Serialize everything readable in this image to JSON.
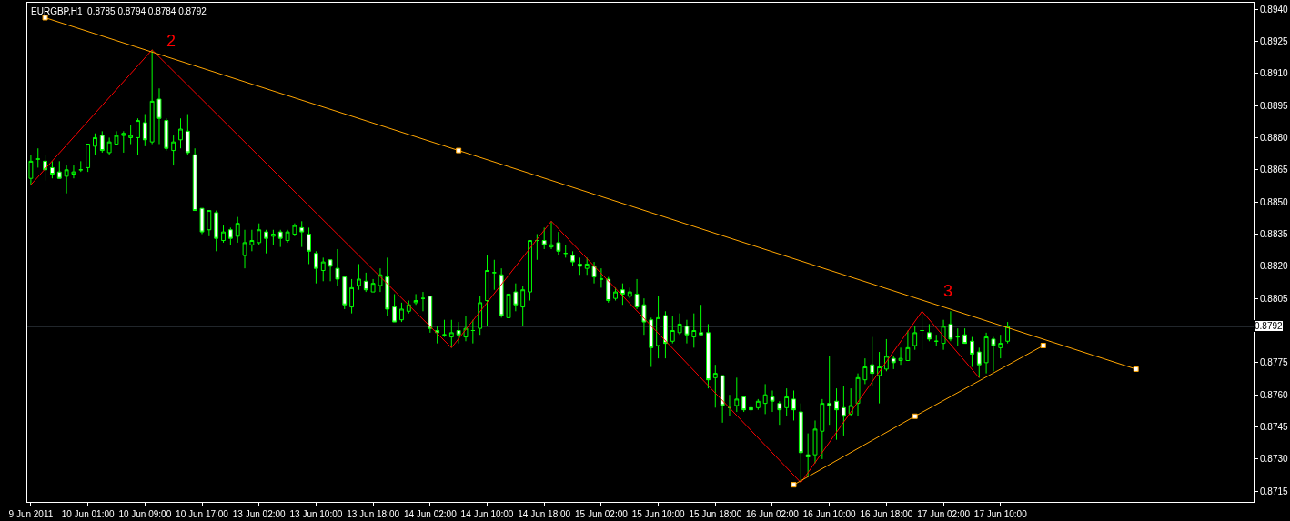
{
  "chart_data": {
    "type": "candlestick",
    "title": "EURGBP,H1  0.8785 0.8794 0.8784 0.8792",
    "categories": [
      "9 Jun 2011",
      null,
      null,
      null,
      null,
      null,
      null,
      null,
      "10 Jun 01:00",
      null,
      null,
      null,
      null,
      null,
      null,
      null,
      "10 Jun 09:00",
      null,
      null,
      null,
      null,
      null,
      null,
      null,
      "10 Jun 17:00",
      null,
      null,
      null,
      null,
      null,
      null,
      null,
      "13 Jun 02:00",
      null,
      null,
      null,
      null,
      null,
      null,
      null,
      "13 Jun 10:00",
      null,
      null,
      null,
      null,
      null,
      null,
      null,
      "13 Jun 18:00",
      null,
      null,
      null,
      null,
      null,
      null,
      null,
      "14 Jun 02:00",
      null,
      null,
      null,
      null,
      null,
      null,
      null,
      "14 Jun 10:00",
      null,
      null,
      null,
      null,
      null,
      null,
      null,
      "14 Jun 18:00",
      null,
      null,
      null,
      null,
      null,
      null,
      null,
      "15 Jun 02:00",
      null,
      null,
      null,
      null,
      null,
      null,
      null,
      "15 Jun 10:00",
      null,
      null,
      null,
      null,
      null,
      null,
      null,
      "15 Jun 18:00",
      null,
      null,
      null,
      null,
      null,
      null,
      null,
      "16 Jun 02:00",
      null,
      null,
      null,
      null,
      null,
      null,
      null,
      "16 Jun 10:00",
      null,
      null,
      null,
      null,
      null,
      null,
      null,
      "16 Jun 18:00",
      null,
      null,
      null,
      null,
      null,
      null,
      null,
      "17 Jun 02:00",
      null,
      null,
      null,
      null,
      null,
      null,
      null,
      "17 Jun 10:00",
      null,
      null,
      null,
      null,
      null,
      null,
      null,
      null,
      null,
      null,
      null,
      null,
      null,
      null,
      null,
      null,
      null,
      null,
      null,
      null,
      null,
      null,
      null,
      null,
      null,
      null,
      null,
      null,
      null,
      null,
      null,
      null,
      null,
      null,
      null
    ],
    "color": "#00ff00",
    "ohlc": [
      [
        0.8861,
        0.8872,
        0.8858,
        0.8869
      ],
      [
        0.887,
        0.8875,
        0.8866,
        0.887
      ],
      [
        0.8869,
        0.8872,
        0.886,
        0.8865
      ],
      [
        0.8866,
        0.8869,
        0.8861,
        0.8863
      ],
      [
        0.8864,
        0.8869,
        0.8861,
        0.8861
      ],
      [
        0.8862,
        0.8867,
        0.8854,
        0.8865
      ],
      [
        0.8863,
        0.8867,
        0.8861,
        0.8864
      ],
      [
        0.8865,
        0.8869,
        0.8864,
        0.8865
      ],
      [
        0.8866,
        0.8877,
        0.8864,
        0.8877
      ],
      [
        0.8876,
        0.8882,
        0.8872,
        0.888
      ],
      [
        0.8881,
        0.8883,
        0.8873,
        0.8874
      ],
      [
        0.8873,
        0.888,
        0.8872,
        0.8878
      ],
      [
        0.8877,
        0.8883,
        0.8877,
        0.8881
      ],
      [
        0.8881,
        0.8883,
        0.8873,
        0.8882
      ],
      [
        0.888,
        0.8886,
        0.8877,
        0.8881
      ],
      [
        0.888,
        0.8889,
        0.8872,
        0.8888
      ],
      [
        0.8887,
        0.8891,
        0.8876,
        0.8879
      ],
      [
        0.8878,
        0.8921,
        0.8877,
        0.8897
      ],
      [
        0.8898,
        0.8903,
        0.8877,
        0.8889
      ],
      [
        0.8888,
        0.8889,
        0.8874,
        0.8875
      ],
      [
        0.8874,
        0.8881,
        0.8867,
        0.8878
      ],
      [
        0.8879,
        0.8889,
        0.8875,
        0.8884
      ],
      [
        0.8883,
        0.8891,
        0.8872,
        0.8873
      ],
      [
        0.8872,
        0.8875,
        0.8846,
        0.8846
      ],
      [
        0.8847,
        0.8847,
        0.8835,
        0.8836
      ],
      [
        0.8837,
        0.8846,
        0.8834,
        0.8846
      ],
      [
        0.8845,
        0.8846,
        0.8827,
        0.8833
      ],
      [
        0.8832,
        0.8839,
        0.8831,
        0.8836
      ],
      [
        0.8837,
        0.8838,
        0.883,
        0.8833
      ],
      [
        0.8834,
        0.8843,
        0.8831,
        0.884
      ],
      [
        0.8825,
        0.8837,
        0.8819,
        0.8831
      ],
      [
        0.883,
        0.8837,
        0.8827,
        0.8832
      ],
      [
        0.8831,
        0.884,
        0.883,
        0.8837
      ],
      [
        0.8836,
        0.8837,
        0.8826,
        0.8833
      ],
      [
        0.8834,
        0.8837,
        0.883,
        0.8835
      ],
      [
        0.8836,
        0.8837,
        0.8829,
        0.8833
      ],
      [
        0.8832,
        0.8837,
        0.8831,
        0.8836
      ],
      [
        0.8835,
        0.884,
        0.8834,
        0.8839
      ],
      [
        0.8838,
        0.8841,
        0.8829,
        0.8836
      ],
      [
        0.8835,
        0.8838,
        0.8821,
        0.8827
      ],
      [
        0.8826,
        0.8827,
        0.8812,
        0.8819
      ],
      [
        0.8818,
        0.8824,
        0.8813,
        0.8822
      ],
      [
        0.8823,
        0.8823,
        0.8813,
        0.882
      ],
      [
        0.8819,
        0.8828,
        0.8811,
        0.8814
      ],
      [
        0.8815,
        0.8815,
        0.88,
        0.8802
      ],
      [
        0.8801,
        0.8814,
        0.8798,
        0.881
      ],
      [
        0.8811,
        0.8821,
        0.8809,
        0.8814
      ],
      [
        0.8813,
        0.8817,
        0.8808,
        0.8809
      ],
      [
        0.8808,
        0.8814,
        0.8808,
        0.8812
      ],
      [
        0.8811,
        0.8819,
        0.8808,
        0.8816
      ],
      [
        0.8815,
        0.8824,
        0.8797,
        0.88
      ],
      [
        0.8801,
        0.8807,
        0.8794,
        0.8794
      ],
      [
        0.8795,
        0.8803,
        0.8794,
        0.88
      ],
      [
        0.8799,
        0.8804,
        0.8798,
        0.8802
      ],
      [
        0.8803,
        0.8807,
        0.8802,
        0.8804
      ],
      [
        0.8805,
        0.8808,
        0.8799,
        0.8805
      ],
      [
        0.8806,
        0.8806,
        0.8789,
        0.8791
      ],
      [
        0.879,
        0.8792,
        0.8784,
        0.8789
      ],
      [
        0.8788,
        0.8795,
        0.8787,
        0.8788
      ],
      [
        0.8787,
        0.8795,
        0.8782,
        0.8789
      ],
      [
        0.879,
        0.8794,
        0.8784,
        0.8788
      ],
      [
        0.8787,
        0.8797,
        0.8785,
        0.8791
      ],
      [
        0.879,
        0.8795,
        0.8784,
        0.879
      ],
      [
        0.8791,
        0.8806,
        0.8788,
        0.8803
      ],
      [
        0.8804,
        0.8825,
        0.8792,
        0.8818
      ],
      [
        0.8817,
        0.8823,
        0.8809,
        0.8817
      ],
      [
        0.8816,
        0.8819,
        0.8796,
        0.8797
      ],
      [
        0.8796,
        0.8807,
        0.8796,
        0.8807
      ],
      [
        0.8808,
        0.8812,
        0.8799,
        0.8802
      ],
      [
        0.8801,
        0.8811,
        0.8792,
        0.8809
      ],
      [
        0.8808,
        0.8832,
        0.8804,
        0.8832
      ],
      [
        0.8832,
        0.8835,
        0.8823,
        0.8832
      ],
      [
        0.8832,
        0.8838,
        0.8828,
        0.883
      ],
      [
        0.8829,
        0.8841,
        0.8828,
        0.883
      ],
      [
        0.8831,
        0.8836,
        0.8825,
        0.8827
      ],
      [
        0.8826,
        0.883,
        0.8824,
        0.8826
      ],
      [
        0.8825,
        0.8827,
        0.882,
        0.8822
      ],
      [
        0.8821,
        0.8824,
        0.8816,
        0.882
      ],
      [
        0.8819,
        0.8824,
        0.8816,
        0.8821
      ],
      [
        0.882,
        0.8822,
        0.8812,
        0.8815
      ],
      [
        0.8814,
        0.8819,
        0.881,
        0.8814
      ],
      [
        0.8814,
        0.8815,
        0.8803,
        0.8804
      ],
      [
        0.8805,
        0.881,
        0.8804,
        0.8808
      ],
      [
        0.8809,
        0.8812,
        0.8802,
        0.8807
      ],
      [
        0.8806,
        0.881,
        0.8805,
        0.8808
      ],
      [
        0.8807,
        0.8814,
        0.88,
        0.8801
      ],
      [
        0.8802,
        0.8805,
        0.8788,
        0.8794
      ],
      [
        0.8795,
        0.8796,
        0.8773,
        0.8782
      ],
      [
        0.8783,
        0.8806,
        0.8777,
        0.8796
      ],
      [
        0.8797,
        0.8799,
        0.8777,
        0.8784
      ],
      [
        0.8785,
        0.8797,
        0.8784,
        0.879
      ],
      [
        0.8789,
        0.8798,
        0.8788,
        0.8793
      ],
      [
        0.8792,
        0.8795,
        0.8784,
        0.8788
      ],
      [
        0.8787,
        0.8798,
        0.8782,
        0.879
      ],
      [
        0.8789,
        0.8802,
        0.8788,
        0.8788
      ],
      [
        0.8789,
        0.8793,
        0.8763,
        0.8767
      ],
      [
        0.8768,
        0.8774,
        0.8754,
        0.877
      ],
      [
        0.8769,
        0.8769,
        0.8747,
        0.8755
      ],
      [
        0.8754,
        0.876,
        0.875,
        0.8754
      ],
      [
        0.8755,
        0.8768,
        0.8752,
        0.8758
      ],
      [
        0.8759,
        0.8759,
        0.8752,
        0.8753
      ],
      [
        0.8754,
        0.8756,
        0.8751,
        0.8753
      ],
      [
        0.8754,
        0.8758,
        0.8753,
        0.8757
      ],
      [
        0.8756,
        0.8765,
        0.8751,
        0.876
      ],
      [
        0.8759,
        0.8762,
        0.8752,
        0.8757
      ],
      [
        0.8756,
        0.8757,
        0.8746,
        0.8753
      ],
      [
        0.8754,
        0.8763,
        0.875,
        0.8759
      ],
      [
        0.8758,
        0.8762,
        0.8748,
        0.8753
      ],
      [
        0.8752,
        0.8756,
        0.8719,
        0.8733
      ],
      [
        0.8732,
        0.8742,
        0.8722,
        0.8731
      ],
      [
        0.8732,
        0.8748,
        0.8728,
        0.8744
      ],
      [
        0.8743,
        0.8758,
        0.873,
        0.8756
      ],
      [
        0.8756,
        0.8778,
        0.8746,
        0.8755
      ],
      [
        0.8757,
        0.8763,
        0.8739,
        0.8753
      ],
      [
        0.8754,
        0.8764,
        0.8741,
        0.875
      ],
      [
        0.8751,
        0.8763,
        0.875,
        0.8755
      ],
      [
        0.8756,
        0.877,
        0.875,
        0.8768
      ],
      [
        0.8767,
        0.8777,
        0.8765,
        0.8773
      ],
      [
        0.8774,
        0.8787,
        0.8764,
        0.877
      ],
      [
        0.8769,
        0.878,
        0.8756,
        0.8773
      ],
      [
        0.8772,
        0.8786,
        0.8771,
        0.8778
      ],
      [
        0.8777,
        0.8778,
        0.8772,
        0.8775
      ],
      [
        0.8776,
        0.8782,
        0.8774,
        0.8777
      ],
      [
        0.8776,
        0.879,
        0.8776,
        0.8782
      ],
      [
        0.8783,
        0.8792,
        0.8781,
        0.8789
      ],
      [
        0.879,
        0.8799,
        0.8781,
        0.879
      ],
      [
        0.8789,
        0.8793,
        0.8785,
        0.8786
      ],
      [
        0.8785,
        0.8788,
        0.8783,
        0.8785
      ],
      [
        0.8784,
        0.8795,
        0.8781,
        0.8792
      ],
      [
        0.8793,
        0.8799,
        0.8785,
        0.8786
      ],
      [
        0.8787,
        0.8791,
        0.8783,
        0.8787
      ],
      [
        0.8788,
        0.8791,
        0.8784,
        0.8784
      ],
      [
        0.8785,
        0.8787,
        0.8773,
        0.8779
      ],
      [
        0.878,
        0.8782,
        0.8768,
        0.8774
      ],
      [
        0.8775,
        0.8789,
        0.877,
        0.8787
      ],
      [
        0.8786,
        0.8787,
        0.8771,
        0.8783
      ],
      [
        0.8782,
        0.8788,
        0.8777,
        0.8784
      ],
      [
        0.8785,
        0.8794,
        0.8784,
        0.8792
      ],
      null,
      null,
      null,
      null,
      null,
      null,
      null,
      null,
      null,
      null,
      null,
      null,
      null,
      null,
      null,
      null,
      null,
      null,
      null,
      null,
      null,
      null,
      null,
      null,
      null,
      null,
      null,
      null,
      null,
      null,
      null,
      null,
      null,
      null
    ],
    "series": [
      {
        "type": "line",
        "color": "#ff0000",
        "marker": "none",
        "values": [
          0.8858,
          null,
          null,
          null,
          null,
          null,
          null,
          null,
          null,
          null,
          null,
          null,
          null,
          null,
          null,
          null,
          null,
          0.8921,
          null,
          null,
          null,
          null,
          null,
          null,
          null,
          null,
          null,
          null,
          null,
          null,
          null,
          null,
          null,
          null,
          null,
          null,
          null,
          null,
          null,
          null,
          null,
          null,
          null,
          null,
          null,
          null,
          null,
          null,
          null,
          null,
          null,
          null,
          null,
          null,
          null,
          null,
          null,
          null,
          null,
          0.8782,
          null,
          null,
          null,
          null,
          null,
          null,
          null,
          null,
          null,
          null,
          null,
          null,
          null,
          0.8841,
          null,
          null,
          null,
          null,
          null,
          null,
          null,
          null,
          null,
          null,
          null,
          null,
          null,
          null,
          null,
          null,
          null,
          null,
          null,
          null,
          null,
          null,
          null,
          null,
          null,
          null,
          null,
          null,
          null,
          null,
          null,
          null,
          null,
          null,
          0.8719,
          null,
          null,
          null,
          null,
          null,
          null,
          null,
          null,
          null,
          null,
          null,
          null,
          null,
          null,
          null,
          null,
          0.8799,
          null,
          null,
          null,
          null,
          null,
          null,
          null,
          0.8768,
          null,
          null,
          null,
          null,
          null,
          null,
          null,
          null,
          null,
          null,
          null,
          null,
          null,
          null,
          null,
          null,
          null,
          null,
          null,
          null,
          null,
          null,
          null,
          null,
          null,
          null,
          null,
          null,
          null,
          null,
          null,
          null,
          null,
          null,
          null,
          null,
          null,
          null
        ]
      },
      {
        "type": "line",
        "color": "#ffa500",
        "marker": "square",
        "values": [
          null,
          null,
          0.8936,
          null,
          null,
          null,
          null,
          null,
          null,
          null,
          null,
          null,
          null,
          null,
          null,
          null,
          null,
          null,
          null,
          null,
          null,
          null,
          null,
          null,
          null,
          null,
          null,
          null,
          null,
          null,
          null,
          null,
          null,
          null,
          null,
          null,
          null,
          null,
          null,
          null,
          null,
          null,
          null,
          null,
          null,
          null,
          null,
          null,
          null,
          null,
          null,
          null,
          null,
          null,
          null,
          null,
          null,
          null,
          null,
          null,
          0.8874,
          null,
          null,
          null,
          null,
          null,
          null,
          null,
          null,
          null,
          null,
          null,
          null,
          null,
          null,
          null,
          null,
          null,
          null,
          null,
          null,
          null,
          null,
          null,
          null,
          null,
          null,
          null,
          null,
          null,
          null,
          null,
          null,
          null,
          null,
          null,
          null,
          null,
          null,
          null,
          null,
          null,
          null,
          null,
          null,
          null,
          null,
          null,
          null,
          null,
          null,
          null,
          null,
          null,
          null,
          null,
          null,
          null,
          null,
          null,
          null,
          null,
          null,
          null,
          null,
          null,
          null,
          null,
          null,
          null,
          null,
          null,
          null,
          null,
          null,
          null,
          null,
          null,
          null,
          null,
          null,
          null,
          null,
          null,
          null,
          null,
          null,
          null,
          null,
          null,
          null,
          null,
          null,
          null,
          null,
          0.8772,
          null,
          null,
          null,
          null,
          null,
          null,
          null,
          null,
          null,
          null,
          null,
          null,
          null,
          null,
          null,
          null
        ]
      },
      {
        "type": "line",
        "color": "#ffa500",
        "marker": "square",
        "values": [
          null,
          null,
          null,
          null,
          null,
          null,
          null,
          null,
          null,
          null,
          null,
          null,
          null,
          null,
          null,
          null,
          null,
          null,
          null,
          null,
          null,
          null,
          null,
          null,
          null,
          null,
          null,
          null,
          null,
          null,
          null,
          null,
          null,
          null,
          null,
          null,
          null,
          null,
          null,
          null,
          null,
          null,
          null,
          null,
          null,
          null,
          null,
          null,
          null,
          null,
          null,
          null,
          null,
          null,
          null,
          null,
          null,
          null,
          null,
          null,
          null,
          null,
          null,
          null,
          null,
          null,
          null,
          null,
          null,
          null,
          null,
          null,
          null,
          null,
          null,
          null,
          null,
          null,
          null,
          null,
          null,
          null,
          null,
          null,
          null,
          null,
          null,
          null,
          null,
          null,
          null,
          null,
          null,
          null,
          null,
          null,
          null,
          null,
          null,
          null,
          null,
          null,
          null,
          null,
          null,
          null,
          null,
          0.8718,
          null,
          null,
          null,
          null,
          null,
          null,
          null,
          null,
          null,
          null,
          null,
          null,
          null,
          null,
          null,
          null,
          0.875,
          null,
          null,
          null,
          null,
          null,
          null,
          null,
          null,
          null,
          null,
          null,
          null,
          null,
          null,
          null,
          null,
          null,
          0.8783,
          null,
          null,
          null,
          null,
          null,
          null,
          null,
          null,
          null,
          null,
          null,
          null,
          null,
          null,
          null,
          null,
          null,
          null,
          null,
          null,
          null,
          null,
          null,
          null,
          null,
          null,
          null,
          null,
          null
        ]
      }
    ],
    "ylim": [
      0.871,
      0.8943
    ],
    "yticks": [
      {
        "value": 0.8715,
        "label": "0.8715"
      },
      {
        "value": 0.873,
        "label": "0.8730"
      },
      0.8745,
      {
        "value": 0.876,
        "label": "0.8760"
      },
      0.8775,
      {
        "value": 0.879,
        "label": null
      },
      0.8805,
      {
        "value": 0.882,
        "label": "0.8820"
      },
      0.8835,
      {
        "value": 0.885,
        "label": "0.8850"
      },
      0.8865,
      {
        "value": 0.888,
        "label": "0.8880"
      },
      0.8895,
      {
        "value": 0.891,
        "label": "0.8910"
      },
      0.8925,
      {
        "value": 0.894,
        "label": "0.8940"
      }
    ],
    "ref_lines": [
      {
        "axis": "y",
        "value": 0.8792,
        "label": "0.8792",
        "color": "#778899"
      }
    ],
    "annotations": [
      "2",
      "3"
    ]
  }
}
